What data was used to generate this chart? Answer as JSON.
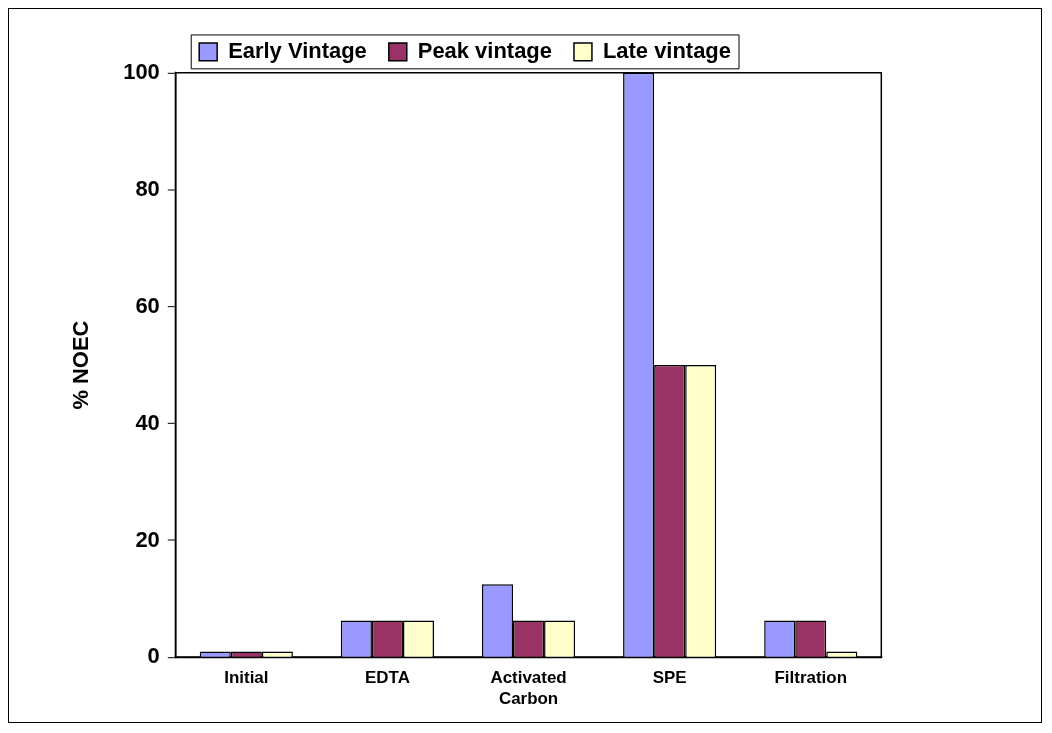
{
  "chart_data": {
    "type": "bar",
    "ylabel": "% NOEC",
    "categories": [
      "Initial",
      "EDTA",
      "Activated Carbon",
      "SPE",
      "Filtration"
    ],
    "series": [
      {
        "name": "Early Vintage",
        "color": "#9999ff",
        "values": [
          1,
          6.3,
          12.5,
          100,
          6.3
        ]
      },
      {
        "name": "Peak vintage",
        "color": "#993366",
        "values": [
          1,
          6.3,
          6.3,
          50,
          6.3
        ]
      },
      {
        "name": "Late vintage",
        "color": "#ffffcc",
        "values": [
          1,
          6.3,
          6.3,
          50,
          1
        ]
      }
    ],
    "ylim": [
      0,
      100
    ],
    "yticks": [
      0,
      20,
      40,
      60,
      80,
      100
    ],
    "grid": false,
    "legend": "top"
  }
}
